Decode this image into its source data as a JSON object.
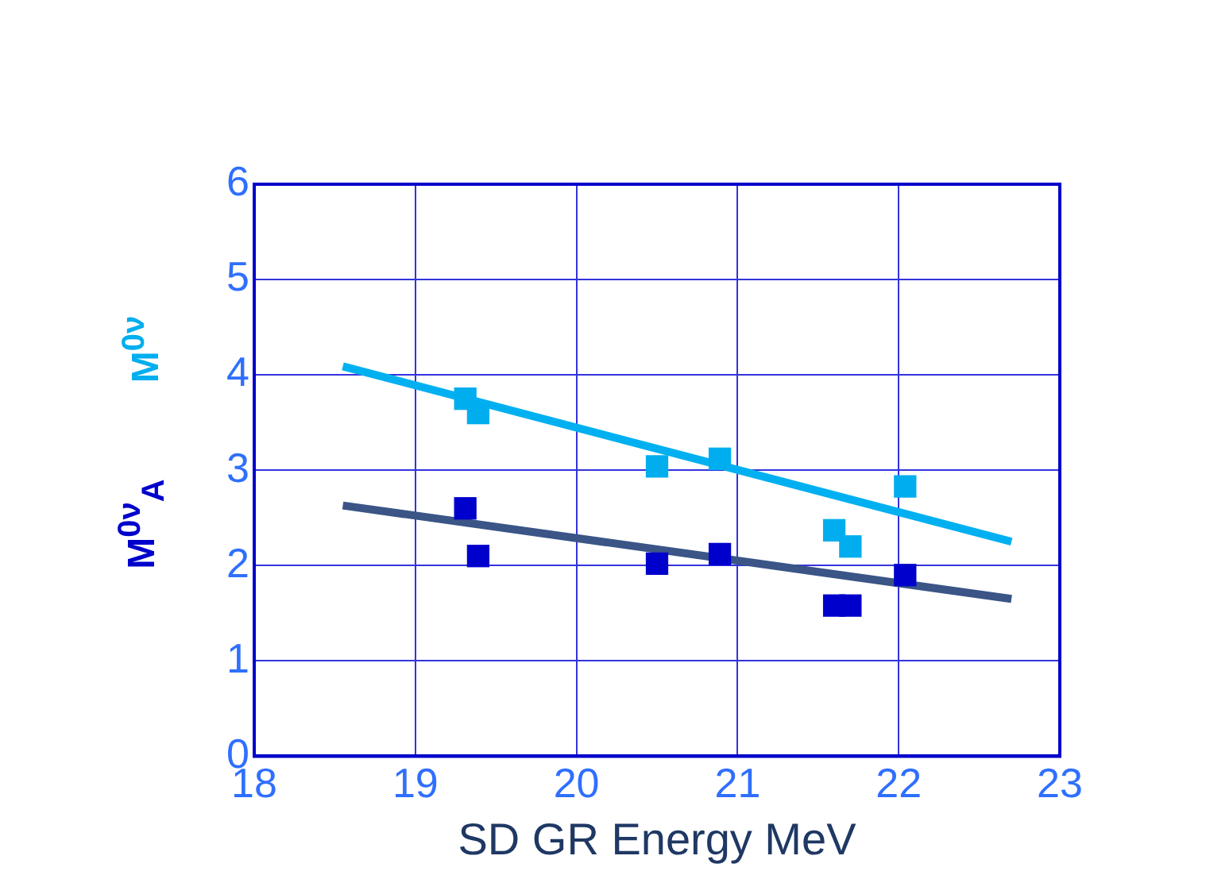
{
  "chart_data": {
    "type": "scatter",
    "xlabel": "SD GR Energy MeV",
    "xlim": [
      18,
      23
    ],
    "xticks": [
      18,
      19,
      20,
      21,
      22,
      23
    ],
    "ylim": [
      0,
      6
    ],
    "yticks": [
      0,
      1,
      2,
      3,
      4,
      5,
      6
    ],
    "grid": true,
    "marker": "square",
    "series": [
      {
        "name": "M$^{0ν}$",
        "color": "#00aeef",
        "x": [
          19.31,
          19.39,
          20.5,
          20.89,
          21.6,
          21.7,
          22.04
        ],
        "values": [
          3.75,
          3.6,
          3.04,
          3.12,
          2.37,
          2.2,
          2.83
        ]
      },
      {
        "name": "M$^{0ν}$$_{A}$",
        "color": "#0000cc",
        "x": [
          19.31,
          19.39,
          20.5,
          20.89,
          21.6,
          21.7,
          22.04
        ],
        "values": [
          2.6,
          2.1,
          2.02,
          2.12,
          1.58,
          1.58,
          1.9
        ]
      },
      {
        "type": "line",
        "color": "#00b0f0",
        "line_style": "solid",
        "marker": "none",
        "x": [
          18.55,
          22.7
        ],
        "values": [
          4.09,
          2.25
        ]
      },
      {
        "type": "line",
        "color": "#3a5586",
        "line_style": "solid",
        "marker": "none",
        "x": [
          18.55,
          22.7
        ],
        "values": [
          2.63,
          1.65
        ]
      }
    ]
  }
}
